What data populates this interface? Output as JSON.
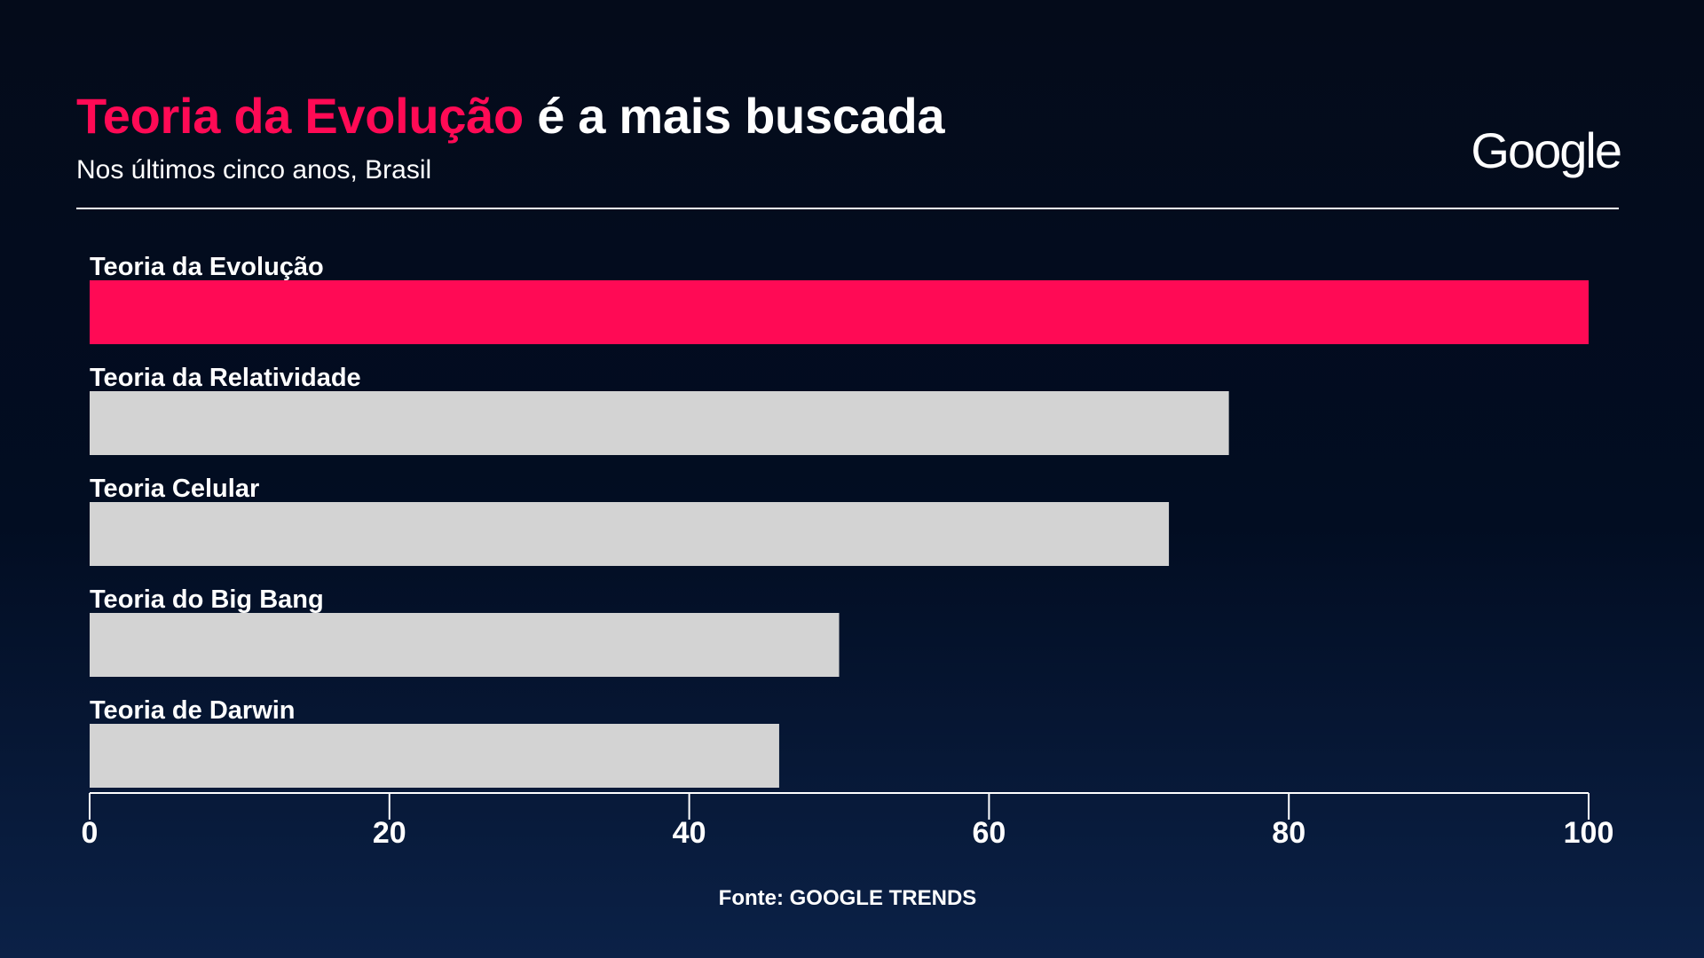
{
  "header": {
    "title_highlight": "Teoria da Evolução",
    "title_rest": " é a mais buscada",
    "subtitle": "Nos últimos cinco anos, Brasil",
    "logo_text": "Google"
  },
  "footer": {
    "source": "Fonte: GOOGLE TRENDS"
  },
  "colors": {
    "highlight": "#ff0a55",
    "bar_default": "#d3d3d3",
    "text": "#ffffff"
  },
  "chart_data": {
    "type": "bar",
    "orientation": "horizontal",
    "title": "Teoria da Evolução é a mais buscada",
    "subtitle": "Nos últimos cinco anos, Brasil",
    "categories": [
      "Teoria da Evolução",
      "Teoria da Relatividade",
      "Teoria Celular",
      "Teoria do Big Bang",
      "Teoria de Darwin"
    ],
    "values": [
      100,
      76,
      72,
      50,
      46
    ],
    "highlight_index": 0,
    "xlim": [
      0,
      100
    ],
    "xticks": [
      0,
      20,
      40,
      60,
      80,
      100
    ],
    "xlabel": "",
    "ylabel": "",
    "grid": false,
    "legend": "none",
    "source": "Fonte: GOOGLE TRENDS"
  }
}
